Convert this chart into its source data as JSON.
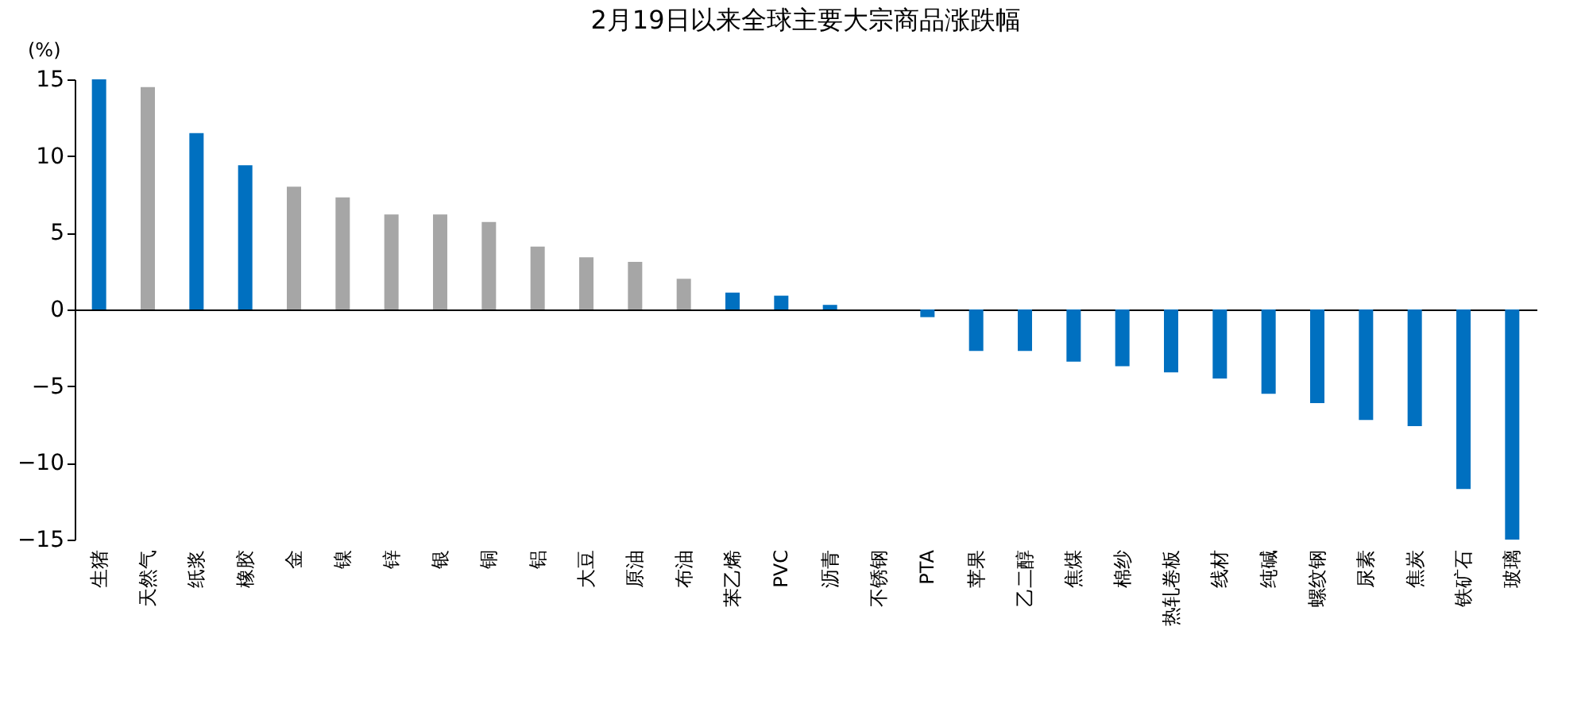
{
  "chart_data": {
    "type": "bar",
    "title": "2月19日以来全球主要大宗商品涨跌幅",
    "ylabel": "(%)",
    "categories": [
      "生猪",
      "天然气",
      "纸浆",
      "橡胶",
      "金",
      "镍",
      "锌",
      "银",
      "铜",
      "铝",
      "大豆",
      "原油",
      "布油",
      "苯乙烯",
      "PVC",
      "沥青",
      "不锈钢",
      "PTA",
      "苹果",
      "乙二醇",
      "焦煤",
      "棉纱",
      "热轧卷板",
      "线材",
      "纯碱",
      "螺纹钢",
      "尿素",
      "焦炭",
      "铁矿石",
      "玻璃"
    ],
    "values": [
      15.0,
      14.5,
      11.5,
      9.4,
      8.0,
      7.3,
      6.2,
      6.2,
      5.7,
      4.1,
      3.4,
      3.1,
      2.0,
      1.1,
      0.9,
      0.3,
      0.0,
      -0.5,
      -2.7,
      -2.7,
      -3.4,
      -3.7,
      -4.1,
      -4.5,
      -5.5,
      -6.1,
      -7.2,
      -7.6,
      -11.7,
      -15.0
    ],
    "colors": [
      "#0070c0",
      "#a6a6a6",
      "#0070c0",
      "#0070c0",
      "#a6a6a6",
      "#a6a6a6",
      "#a6a6a6",
      "#a6a6a6",
      "#a6a6a6",
      "#a6a6a6",
      "#a6a6a6",
      "#a6a6a6",
      "#a6a6a6",
      "#0070c0",
      "#0070c0",
      "#0070c0",
      "#0070c0",
      "#0070c0",
      "#0070c0",
      "#0070c0",
      "#0070c0",
      "#0070c0",
      "#0070c0",
      "#0070c0",
      "#0070c0",
      "#0070c0",
      "#0070c0",
      "#0070c0",
      "#0070c0",
      "#0070c0"
    ],
    "ylim": [
      -15,
      15
    ],
    "yticks": [
      -15,
      -10,
      -5,
      0,
      5,
      10,
      15
    ]
  }
}
